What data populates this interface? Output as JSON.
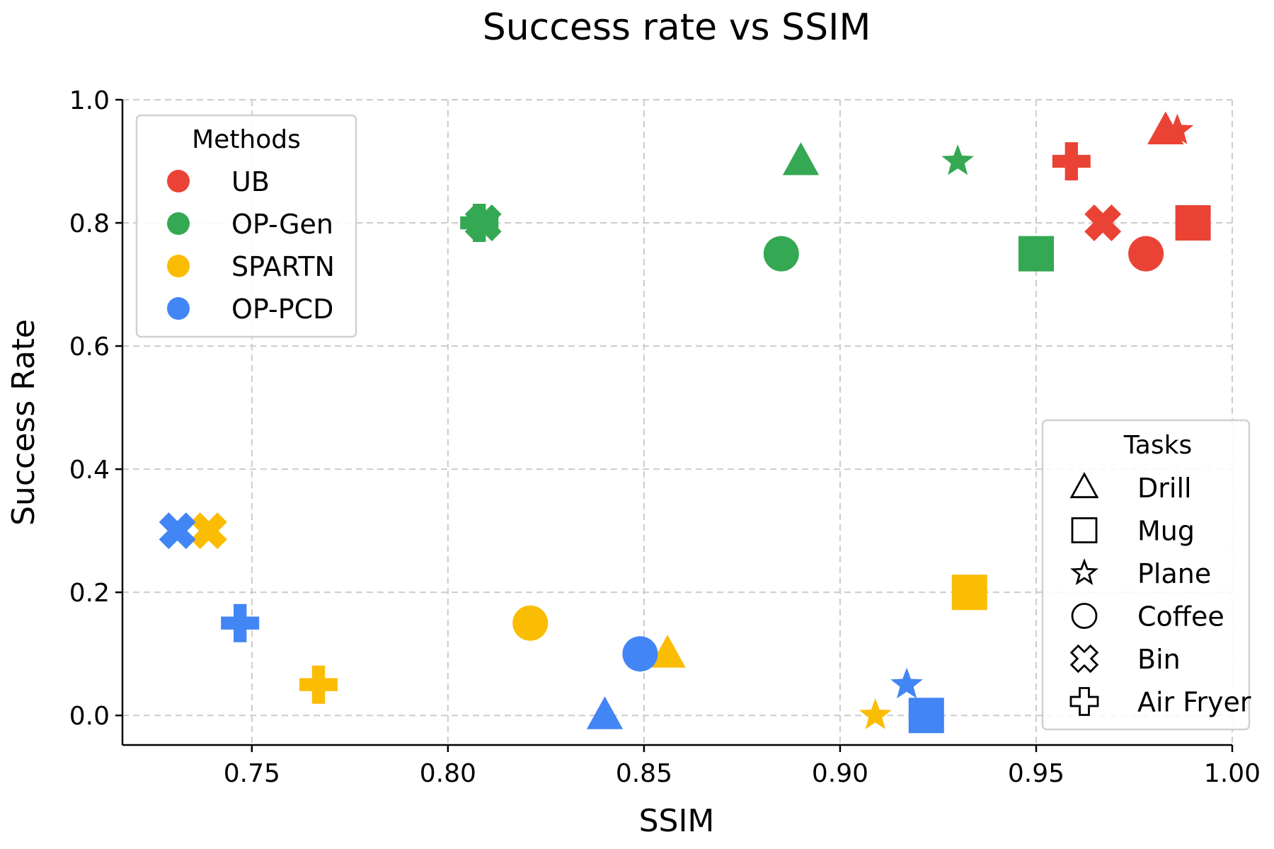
{
  "chart_data": {
    "type": "scatter",
    "title": "Success rate vs SSIM",
    "xlabel": "SSIM",
    "ylabel": "Success Rate",
    "xlim": [
      0.717,
      1.0
    ],
    "ylim": [
      -0.048,
      1.0
    ],
    "xticks": [
      0.75,
      0.8,
      0.85,
      0.9,
      0.95,
      1.0
    ],
    "xtick_labels": [
      "0.75",
      "0.80",
      "0.85",
      "0.90",
      "0.95",
      "1.00"
    ],
    "yticks": [
      0.0,
      0.2,
      0.4,
      0.6,
      0.8,
      1.0
    ],
    "ytick_labels": [
      "0.0",
      "0.2",
      "0.4",
      "0.6",
      "0.8",
      "1.0"
    ],
    "grid": true,
    "legend_methods": {
      "title": "Methods",
      "placement": "top-left",
      "items": [
        {
          "name": "UB",
          "color": "#EA4335"
        },
        {
          "name": "OP-Gen",
          "color": "#34A853"
        },
        {
          "name": "SPARTN",
          "color": "#FBBC04"
        },
        {
          "name": "OP-PCD",
          "color": "#4285F4"
        }
      ]
    },
    "legend_tasks": {
      "title": "Tasks",
      "placement": "bottom-right",
      "items": [
        {
          "name": "Drill",
          "marker": "triangle"
        },
        {
          "name": "Mug",
          "marker": "square"
        },
        {
          "name": "Plane",
          "marker": "star"
        },
        {
          "name": "Coffee",
          "marker": "circle"
        },
        {
          "name": "Bin",
          "marker": "x"
        },
        {
          "name": "Air Fryer",
          "marker": "plus"
        }
      ]
    },
    "series": [
      {
        "name": "UB",
        "color": "#EA4335",
        "points": [
          {
            "task": "Drill",
            "marker": "triangle",
            "x": 0.983,
            "y": 0.95
          },
          {
            "task": "Mug",
            "marker": "square",
            "x": 0.99,
            "y": 0.8
          },
          {
            "task": "Plane",
            "marker": "star",
            "x": 0.986,
            "y": 0.95
          },
          {
            "task": "Coffee",
            "marker": "circle",
            "x": 0.978,
            "y": 0.75
          },
          {
            "task": "Bin",
            "marker": "x",
            "x": 0.967,
            "y": 0.8
          },
          {
            "task": "Air Fryer",
            "marker": "plus",
            "x": 0.959,
            "y": 0.9
          }
        ]
      },
      {
        "name": "OP-Gen",
        "color": "#34A853",
        "points": [
          {
            "task": "Drill",
            "marker": "triangle",
            "x": 0.89,
            "y": 0.9
          },
          {
            "task": "Mug",
            "marker": "square",
            "x": 0.95,
            "y": 0.75
          },
          {
            "task": "Plane",
            "marker": "star",
            "x": 0.93,
            "y": 0.9
          },
          {
            "task": "Coffee",
            "marker": "circle",
            "x": 0.885,
            "y": 0.75
          },
          {
            "task": "Bin",
            "marker": "x",
            "x": 0.809,
            "y": 0.8
          },
          {
            "task": "Air Fryer",
            "marker": "plus",
            "x": 0.808,
            "y": 0.8
          }
        ]
      },
      {
        "name": "SPARTN",
        "color": "#FBBC04",
        "points": [
          {
            "task": "Drill",
            "marker": "triangle",
            "x": 0.856,
            "y": 0.1
          },
          {
            "task": "Mug",
            "marker": "square",
            "x": 0.933,
            "y": 0.2
          },
          {
            "task": "Plane",
            "marker": "star",
            "x": 0.909,
            "y": 0.0
          },
          {
            "task": "Coffee",
            "marker": "circle",
            "x": 0.821,
            "y": 0.15
          },
          {
            "task": "Bin",
            "marker": "x",
            "x": 0.739,
            "y": 0.3
          },
          {
            "task": "Air Fryer",
            "marker": "plus",
            "x": 0.767,
            "y": 0.05
          }
        ]
      },
      {
        "name": "OP-PCD",
        "color": "#4285F4",
        "points": [
          {
            "task": "Drill",
            "marker": "triangle",
            "x": 0.84,
            "y": 0.0
          },
          {
            "task": "Mug",
            "marker": "square",
            "x": 0.922,
            "y": 0.0
          },
          {
            "task": "Plane",
            "marker": "star",
            "x": 0.917,
            "y": 0.05
          },
          {
            "task": "Coffee",
            "marker": "circle",
            "x": 0.849,
            "y": 0.1
          },
          {
            "task": "Bin",
            "marker": "x",
            "x": 0.731,
            "y": 0.3
          },
          {
            "task": "Air Fryer",
            "marker": "plus",
            "x": 0.747,
            "y": 0.15
          }
        ]
      }
    ]
  }
}
